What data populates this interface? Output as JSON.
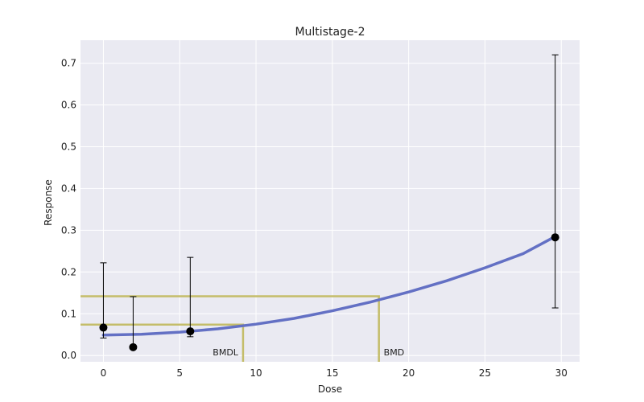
{
  "chart_data": {
    "type": "scatter",
    "title": "Multistage-2",
    "xlabel": "Dose",
    "ylabel": "Response",
    "xlim": [
      -1.5,
      31.2
    ],
    "ylim": [
      -0.015,
      0.755
    ],
    "xticks": [
      0,
      5,
      10,
      15,
      20,
      25,
      30
    ],
    "yticks": [
      0.0,
      0.1,
      0.2,
      0.3,
      0.4,
      0.5,
      0.6,
      0.7
    ],
    "grid": true,
    "legend": "none",
    "colors": {
      "background": "#eaeaf2",
      "grid": "#ffffff",
      "curve": "#6370c4",
      "bmd_lines": "#c4bd6a",
      "points": "#000000"
    },
    "points": [
      {
        "x": 0,
        "y": 0.067,
        "lower": 0.042,
        "upper": 0.222
      },
      {
        "x": 1.95,
        "y": 0.02,
        "lower": 0.02,
        "upper": 0.141
      },
      {
        "x": 5.69,
        "y": 0.058,
        "lower": 0.045,
        "upper": 0.235
      },
      {
        "x": 29.6,
        "y": 0.283,
        "lower": 0.114,
        "upper": 0.72
      }
    ],
    "model_curve": {
      "name": "Multistage-2",
      "x": [
        0,
        2.5,
        5,
        7.5,
        10,
        12.5,
        15,
        17.5,
        20,
        22.5,
        25,
        27.5,
        29.6
      ],
      "y": [
        0.049,
        0.051,
        0.056,
        0.064,
        0.075,
        0.089,
        0.107,
        0.128,
        0.152,
        0.179,
        0.21,
        0.244,
        0.285
      ]
    },
    "annotations": [
      {
        "label": "BMDL",
        "x": 9.15,
        "y": 0.074
      },
      {
        "label": "BMD",
        "x": 18.05,
        "y": 0.142
      }
    ]
  }
}
